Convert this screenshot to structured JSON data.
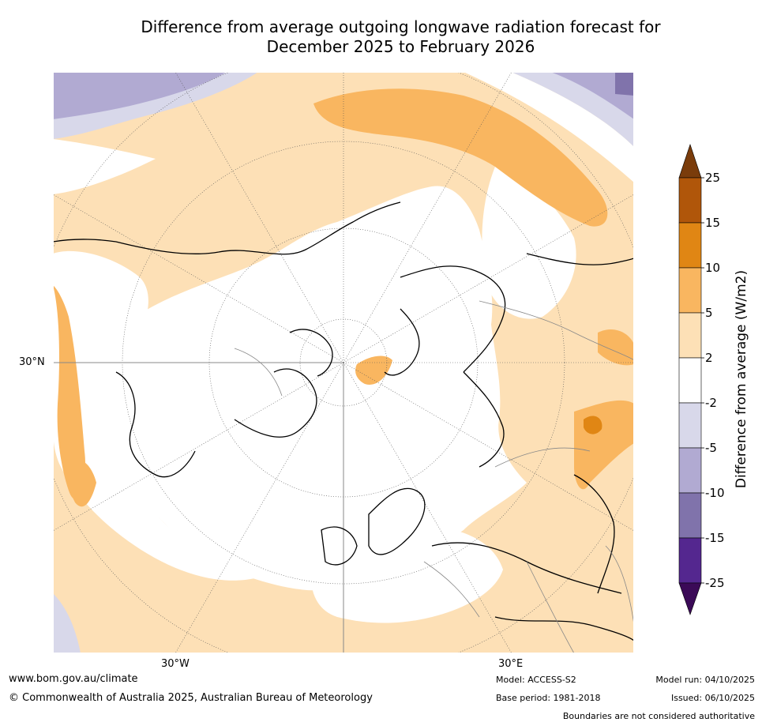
{
  "title": {
    "line1": "Difference from average outgoing longwave radiation forecast for",
    "line2": "December 2025 to February 2026"
  },
  "map": {
    "lat_label": "30°N",
    "lon_labels": [
      "30°W",
      "30°E"
    ]
  },
  "colorbar": {
    "label": "Difference from average (W/m2)",
    "ticks": [
      "25",
      "15",
      "10",
      "5",
      "2",
      "-2",
      "-5",
      "-10",
      "-15",
      "-25"
    ],
    "colors": {
      "over": "#7a3c0b",
      "15_25": "#b0560a",
      "10_15": "#e08614",
      "5_10": "#f9b660",
      "2_5": "#fde0b6",
      "neutral": "#ffffff",
      "m5_m2": "#d8d8ea",
      "m10_m5": "#b1aad2",
      "m15_m10": "#8073ab",
      "m25_m15": "#54278f",
      "under": "#3b0a57"
    }
  },
  "footer": {
    "website": "www.bom.gov.au/climate",
    "copyright": "© Commonwealth of Australia 2025, Australian Bureau of Meteorology",
    "model": "Model: ACCESS-S2",
    "base_period": "Base period: 1981-2018",
    "model_run": "Model run: 04/10/2025",
    "issued": "Issued: 06/10/2025",
    "disclaimer": "Boundaries are not considered authoritative"
  }
}
